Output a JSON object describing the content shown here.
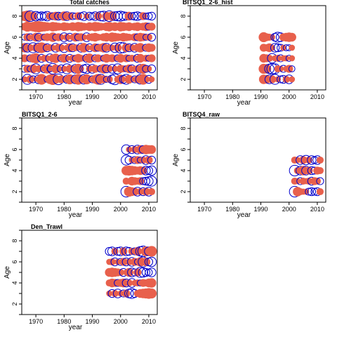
{
  "colors": {
    "positive": "#e8604c",
    "negative": "#0000cc"
  },
  "chart_data": [
    {
      "type": "scatter",
      "title": "Total catches",
      "xlabel": "year",
      "ylabel": "Age",
      "xlim": [
        1965,
        2013
      ],
      "ylim": [
        1,
        9
      ],
      "x_ticks": [
        1970,
        1980,
        1990,
        2000,
        2010
      ],
      "y_ticks": [
        2,
        4,
        6,
        8
      ],
      "years": [
        1966,
        1967,
        1968,
        1969,
        1970,
        1971,
        1972,
        1973,
        1974,
        1975,
        1976,
        1977,
        1978,
        1979,
        1980,
        1981,
        1982,
        1983,
        1984,
        1985,
        1986,
        1987,
        1988,
        1989,
        1990,
        1991,
        1992,
        1993,
        1994,
        1995,
        1996,
        1997,
        1998,
        1999,
        2000,
        2001,
        2002,
        2003,
        2004,
        2005,
        2006,
        2007,
        2008,
        2009,
        2010,
        2011
      ],
      "ages": [
        2,
        3,
        4,
        5,
        6,
        7,
        8
      ],
      "residuals": [
        [
          0.3,
          -0.8,
          0.5,
          -0.4,
          0.2,
          -0.6,
          0.9,
          0.4,
          -0.3,
          0.7,
          1.0,
          0.6,
          -0.9,
          0.5,
          0.3,
          -0.5,
          0.8,
          0.4,
          -0.6,
          0.9,
          0.5,
          -0.7,
          0.8,
          0.3,
          -0.4,
          0.6,
          0.9,
          -0.8,
          0.5,
          -0.3,
          0.4,
          -0.6,
          -0.9,
          0.4,
          0.7,
          -0.5,
          -0.8,
          0.6,
          0.3,
          -0.4,
          0.5,
          -0.7,
          0.9,
          0.4,
          -0.5,
          0.3
        ],
        [
          -0.4,
          0.5,
          -0.3,
          0.6,
          -0.8,
          0.4,
          0.3,
          -0.5,
          0.7,
          -0.3,
          -0.9,
          0.6,
          0.4,
          -0.5,
          0.3,
          -0.8,
          0.5,
          0.4,
          -0.6,
          0.8,
          0.3,
          -0.5,
          -0.7,
          0.4,
          -0.6,
          0.5,
          0.3,
          -0.4,
          0.7,
          -0.5,
          0.4,
          -0.6,
          0.3,
          -0.8,
          0.5,
          0.4,
          -0.3,
          0.6,
          -0.5,
          0.3,
          0.4,
          -0.6,
          0.8,
          -0.4,
          0.3,
          -0.5
        ],
        [
          0.5,
          0.3,
          -0.4,
          0.6,
          0.8,
          0.3,
          -0.5,
          0.4,
          0.3,
          -0.6,
          0.5,
          0.7,
          0.3,
          -0.4,
          0.6,
          0.3,
          -0.5,
          0.4,
          -0.3,
          0.6,
          0.4,
          0.3,
          -0.5,
          0.7,
          0.3,
          -0.4,
          0.5,
          0.3,
          -0.3,
          0.6,
          0.4,
          0.5,
          0.3,
          -0.4,
          0.6,
          0.3,
          0.5,
          -0.3,
          0.4,
          0.3,
          -0.5,
          0.6,
          0.3,
          0.4,
          -0.3,
          0.5
        ],
        [
          0.7,
          -0.6,
          0.4,
          -0.8,
          0.5,
          -0.7,
          0.9,
          0.6,
          -0.5,
          0.4,
          0.3,
          -0.6,
          0.5,
          0.4,
          -0.7,
          0.3,
          0.6,
          -0.5,
          0.4,
          0.3,
          -0.6,
          0.7,
          0.4,
          -0.5,
          0.3,
          0.6,
          -0.4,
          0.5,
          0.7,
          -0.6,
          0.4,
          0.3,
          -0.7,
          0.5,
          -0.9,
          -0.8,
          0.6,
          -0.5,
          0.4,
          -0.6,
          0.5,
          0.7,
          0.3,
          -0.4,
          0.6,
          0.5
        ],
        [
          -0.3,
          0.5,
          -0.4,
          0.3,
          0.6,
          -0.5,
          0.4,
          -0.3,
          0.5,
          0.4,
          0.7,
          -0.3,
          0.5,
          0.3,
          -0.6,
          0.4,
          -0.5,
          0.3,
          0.6,
          -0.4,
          0.5,
          0.3,
          -0.6,
          0.4,
          0.5,
          0.6,
          0.4,
          0.3,
          0.5,
          0.6,
          0.4,
          0.7,
          0.6,
          0.5,
          0.4,
          0.6,
          0.5,
          0.4,
          0.3,
          0.5,
          -0.4,
          0.6,
          0.5,
          -0.3,
          0.4,
          -0.5
        ],
        [
          0.5,
          0.8,
          0.6,
          0.7,
          0.9,
          1.0,
          0.8,
          0.7,
          0.6,
          0.5,
          0.7,
          0.6,
          0.5,
          0.4,
          0.6,
          0.5,
          0.4,
          0.6,
          0.5,
          0.7,
          0.6,
          0.5,
          0.4,
          0.6,
          0.5,
          0.7,
          0.6,
          0.5,
          0.4,
          0.6,
          0.7,
          0.5,
          0.6,
          0.4,
          0.7,
          0.6,
          0.5,
          0.6,
          0.4,
          0.5,
          0.6,
          0.4,
          0.5,
          0.6,
          -0.4,
          0.5
        ],
        [
          0.8,
          1.0,
          -0.9,
          0.6,
          -0.7,
          -0.5,
          -0.6,
          -0.5,
          -0.7,
          0.5,
          -0.4,
          0.6,
          -0.5,
          -0.4,
          0.7,
          -0.6,
          0.5,
          -0.4,
          -0.3,
          0.5,
          -0.4,
          -0.6,
          0.3,
          -0.5,
          -0.4,
          -0.6,
          0.5,
          -0.7,
          -0.8,
          0.6,
          -0.9,
          0.7,
          -0.6,
          -0.7,
          -0.8,
          -0.6,
          -0.5,
          0.6,
          -0.4,
          -0.5,
          -0.6,
          -0.4,
          0.5,
          -0.3,
          -0.4,
          -0.5
        ]
      ]
    },
    {
      "type": "scatter",
      "title": "BITSQ1_2-6_hist",
      "xlabel": "year",
      "ylabel": "Age",
      "xlim": [
        1965,
        2013
      ],
      "ylim": [
        1,
        9
      ],
      "x_ticks": [
        1970,
        1980,
        1990,
        2000,
        2010
      ],
      "y_ticks": [
        2,
        4,
        6,
        8
      ],
      "years": [
        1991,
        1992,
        1993,
        1994,
        1995,
        1996,
        1997,
        1998,
        1999,
        2000,
        2001
      ],
      "ages": [
        2,
        3,
        4,
        5,
        6
      ],
      "residuals": [
        [
          0.7,
          0.6,
          -0.6,
          0.5,
          -0.8,
          0.3,
          -0.4,
          -0.5,
          0.4,
          -0.6,
          0.3
        ],
        [
          0.8,
          0.7,
          -0.7,
          -0.9,
          -0.8,
          0.4,
          0.3,
          -0.4,
          0.3,
          0.5,
          -0.3
        ],
        [
          0.6,
          0.5,
          0.4,
          -0.7,
          0.3,
          0.4,
          -0.4,
          0.3,
          0.3,
          -0.3,
          0.3
        ],
        [
          0.5,
          0.4,
          0.6,
          0.3,
          -0.6,
          -0.5,
          -0.4,
          0.3,
          -0.3,
          -0.3,
          0.3
        ],
        [
          0.8,
          0.5,
          0.4,
          0.3,
          -0.5,
          -0.8,
          -0.6,
          0.5,
          0.6,
          0.7,
          0.6
        ]
      ]
    },
    {
      "type": "scatter",
      "title": "BITSQ1_2-6",
      "xlabel": "year",
      "ylabel": "Age",
      "xlim": [
        1965,
        2013
      ],
      "ylim": [
        1,
        9
      ],
      "x_ticks": [
        1970,
        1980,
        1990,
        2000,
        2010
      ],
      "y_ticks": [
        2,
        4,
        6,
        8
      ],
      "years": [
        2002,
        2003,
        2004,
        2005,
        2006,
        2007,
        2008,
        2009,
        2010,
        2011
      ],
      "ages": [
        2,
        3,
        4,
        5,
        6
      ],
      "residuals": [
        [
          -0.9,
          0.8,
          0.6,
          0.5,
          -0.6,
          0.4,
          -0.5,
          0.5,
          -0.6,
          0.4
        ],
        [
          0.4,
          0.3,
          0.6,
          0.5,
          0.4,
          0.5,
          -0.4,
          -0.5,
          -0.6,
          -0.8
        ],
        [
          0.7,
          0.8,
          0.7,
          0.6,
          0.5,
          0.6,
          0.5,
          -0.6,
          -0.5,
          -0.7
        ],
        [
          -0.8,
          -0.5,
          0.3,
          -0.4,
          0.5,
          -0.3,
          0.4,
          -0.6,
          0.5,
          -0.5
        ],
        [
          -0.7,
          0.3,
          -0.5,
          0.4,
          -0.6,
          0.6,
          -0.5,
          0.7,
          0.6,
          0.6
        ]
      ]
    },
    {
      "type": "scatter",
      "title": "BITSQ4_raw",
      "xlabel": "year",
      "ylabel": "Age",
      "xlim": [
        1965,
        2013
      ],
      "ylim": [
        1,
        9
      ],
      "x_ticks": [
        1970,
        1980,
        1990,
        2000,
        2010
      ],
      "y_ticks": [
        2,
        4,
        6,
        8
      ],
      "years": [
        2002,
        2003,
        2004,
        2005,
        2006,
        2007,
        2008,
        2009,
        2010,
        2011
      ],
      "ages": [
        2,
        3,
        4,
        5
      ],
      "residuals": [
        [
          -0.9,
          0.7,
          0.4,
          0.3,
          0.3,
          -0.4,
          -0.5,
          -0.4,
          -0.5,
          0.4
        ],
        [
          0.4,
          0.3,
          -0.4,
          0.4,
          0.3,
          0.4,
          -0.5,
          0.5,
          0.4,
          -0.4
        ],
        [
          -0.9,
          0.4,
          -0.6,
          0.7,
          -0.6,
          0.5,
          -0.5,
          -0.4,
          0.5,
          0.4
        ],
        [
          0.4,
          0.3,
          -0.6,
          0.5,
          -0.7,
          0.4,
          -0.6,
          -0.4,
          -0.6,
          0.4
        ]
      ]
    },
    {
      "type": "scatter",
      "title": "Den_Trawl",
      "xlabel": "year",
      "ylabel": "Age",
      "xlim": [
        1965,
        2013
      ],
      "ylim": [
        1,
        9
      ],
      "x_ticks": [
        1970,
        1980,
        1990,
        2000,
        2010
      ],
      "y_ticks": [
        2,
        4,
        6,
        8
      ],
      "years": [
        1996,
        1997,
        1998,
        1999,
        2000,
        2001,
        2002,
        2003,
        2004,
        2005,
        2006,
        2007,
        2008,
        2009,
        2010,
        2011
      ],
      "ages": [
        3,
        4,
        5,
        6,
        7
      ],
      "residuals": [
        [
          0.3,
          -0.5,
          0.4,
          -0.6,
          0.3,
          -0.4,
          0.5,
          -0.6,
          -0.8,
          -0.5,
          0.4,
          0.6,
          0.7,
          0.8,
          0.9,
          0.8
        ],
        [
          0.4,
          0.6,
          0.5,
          -0.4,
          0.5,
          0.6,
          -0.5,
          0.4,
          -0.6,
          0.3,
          0.4,
          -0.3,
          0.5,
          0.4,
          0.6,
          0.7
        ],
        [
          0.6,
          0.7,
          0.6,
          0.5,
          0.4,
          -0.5,
          0.3,
          0.6,
          -0.6,
          -0.4,
          0.5,
          -0.8,
          -0.7,
          -0.5,
          -0.4,
          -0.6
        ],
        [
          0.3,
          0.4,
          -0.5,
          0.3,
          -0.4,
          0.5,
          -0.5,
          0.4,
          -0.6,
          0.5,
          -0.3,
          0.7,
          -0.8,
          0.6,
          -0.5,
          -0.7
        ],
        [
          -0.5,
          -0.6,
          0.4,
          -0.5,
          -0.6,
          0.5,
          -0.6,
          -0.5,
          0.4,
          -0.4,
          0.6,
          -0.7,
          -0.9,
          0.8,
          -0.6,
          0.9
        ]
      ]
    }
  ]
}
